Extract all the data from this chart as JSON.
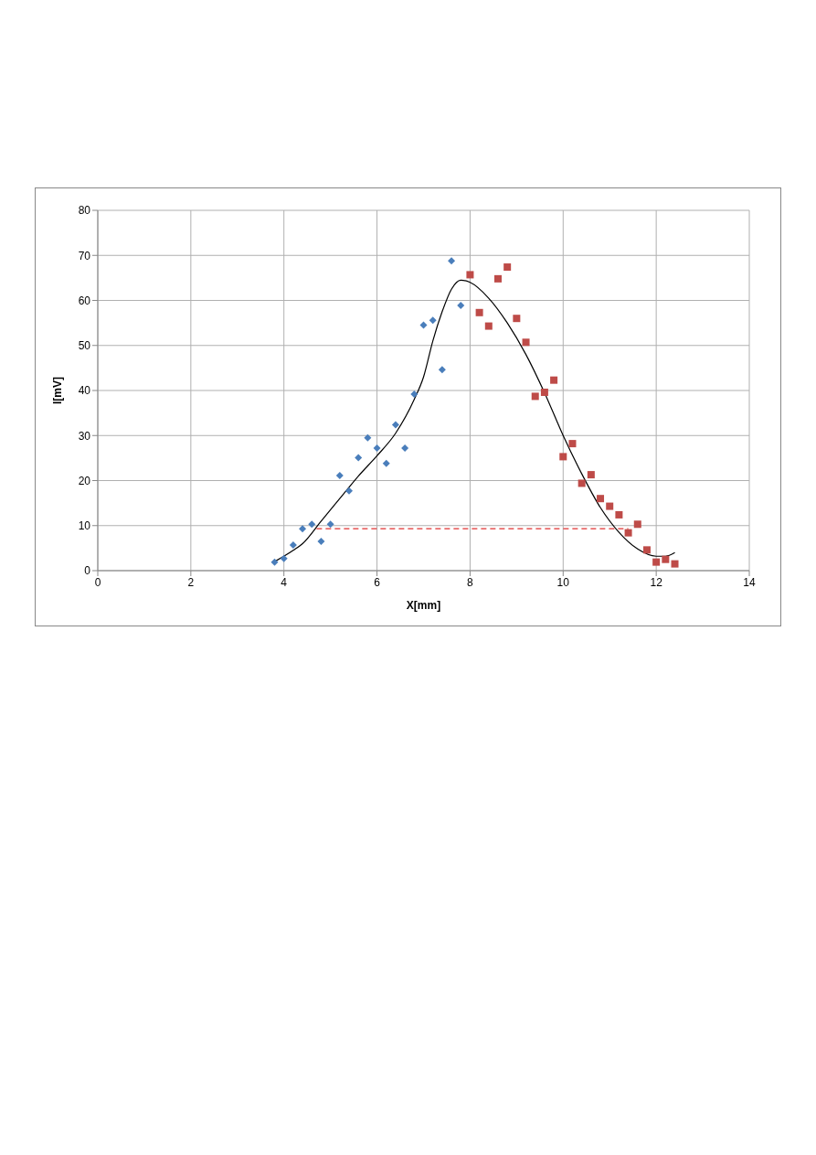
{
  "chart_data": {
    "type": "scatter",
    "xlabel": "X[mm]",
    "ylabel": "I[mV]",
    "xlim": [
      0,
      14
    ],
    "xticks": [
      0,
      2,
      4,
      6,
      8,
      10,
      12,
      14
    ],
    "ylim": [
      0,
      80
    ],
    "yticks": [
      0,
      10,
      20,
      30,
      40,
      50,
      60,
      70,
      80
    ],
    "grid": true,
    "legend": false,
    "series": [
      {
        "marker": "diamond",
        "color": "#4a7ebb",
        "x": [
          3.8,
          4.0,
          4.2,
          4.4,
          4.6,
          4.8,
          5.0,
          5.2,
          5.4,
          5.6,
          5.8,
          6.0,
          6.2,
          6.4,
          6.6,
          6.8,
          7.0,
          7.2,
          7.4,
          7.6,
          7.8
        ],
        "values": [
          1.9,
          2.7,
          5.7,
          9.3,
          10.3,
          6.5,
          10.3,
          21.1,
          17.7,
          25.1,
          29.5,
          27.2,
          23.8,
          32.4,
          27.2,
          39.2,
          54.5,
          55.6,
          44.6,
          68.8,
          58.9
        ]
      },
      {
        "marker": "square",
        "color": "#be4b48",
        "x": [
          8.0,
          8.2,
          8.4,
          8.6,
          8.8,
          9.0,
          9.2,
          9.4,
          9.6,
          9.8,
          10.0,
          10.2,
          10.4,
          10.6,
          10.8,
          11.0,
          11.2,
          11.4,
          11.6,
          11.8,
          12.0,
          12.2,
          12.4
        ],
        "values": [
          65.7,
          57.3,
          54.3,
          64.8,
          67.4,
          56.0,
          50.7,
          38.7,
          39.6,
          42.3,
          25.3,
          28.2,
          19.4,
          21.3,
          16.0,
          14.3,
          12.4,
          8.4,
          10.3,
          4.6,
          1.9,
          2.5,
          1.5
        ]
      },
      {
        "type": "line",
        "line_style": "solid",
        "color": "#000000",
        "x": [
          3.8,
          4.2,
          4.4,
          4.8,
          5.2,
          5.6,
          6.0,
          6.4,
          6.8,
          7.0,
          7.2,
          7.4,
          7.6,
          7.8,
          8.0,
          8.4,
          8.8,
          9.2,
          9.6,
          10.0,
          10.4,
          10.8,
          11.2,
          11.6,
          12.0,
          12.2,
          12.4
        ],
        "values": [
          2,
          4.5,
          6,
          11,
          16,
          21,
          25.5,
          30.5,
          38,
          43,
          51,
          57.5,
          62.5,
          64.5,
          64,
          60.5,
          55,
          48,
          39.5,
          30,
          21.5,
          14,
          8.5,
          4.8,
          3.2,
          3.2,
          4
        ]
      },
      {
        "type": "line",
        "line_style": "dashed",
        "color": "#e03030",
        "x": [
          4.7,
          11.4
        ],
        "values": [
          9.3,
          9.3
        ]
      }
    ]
  }
}
